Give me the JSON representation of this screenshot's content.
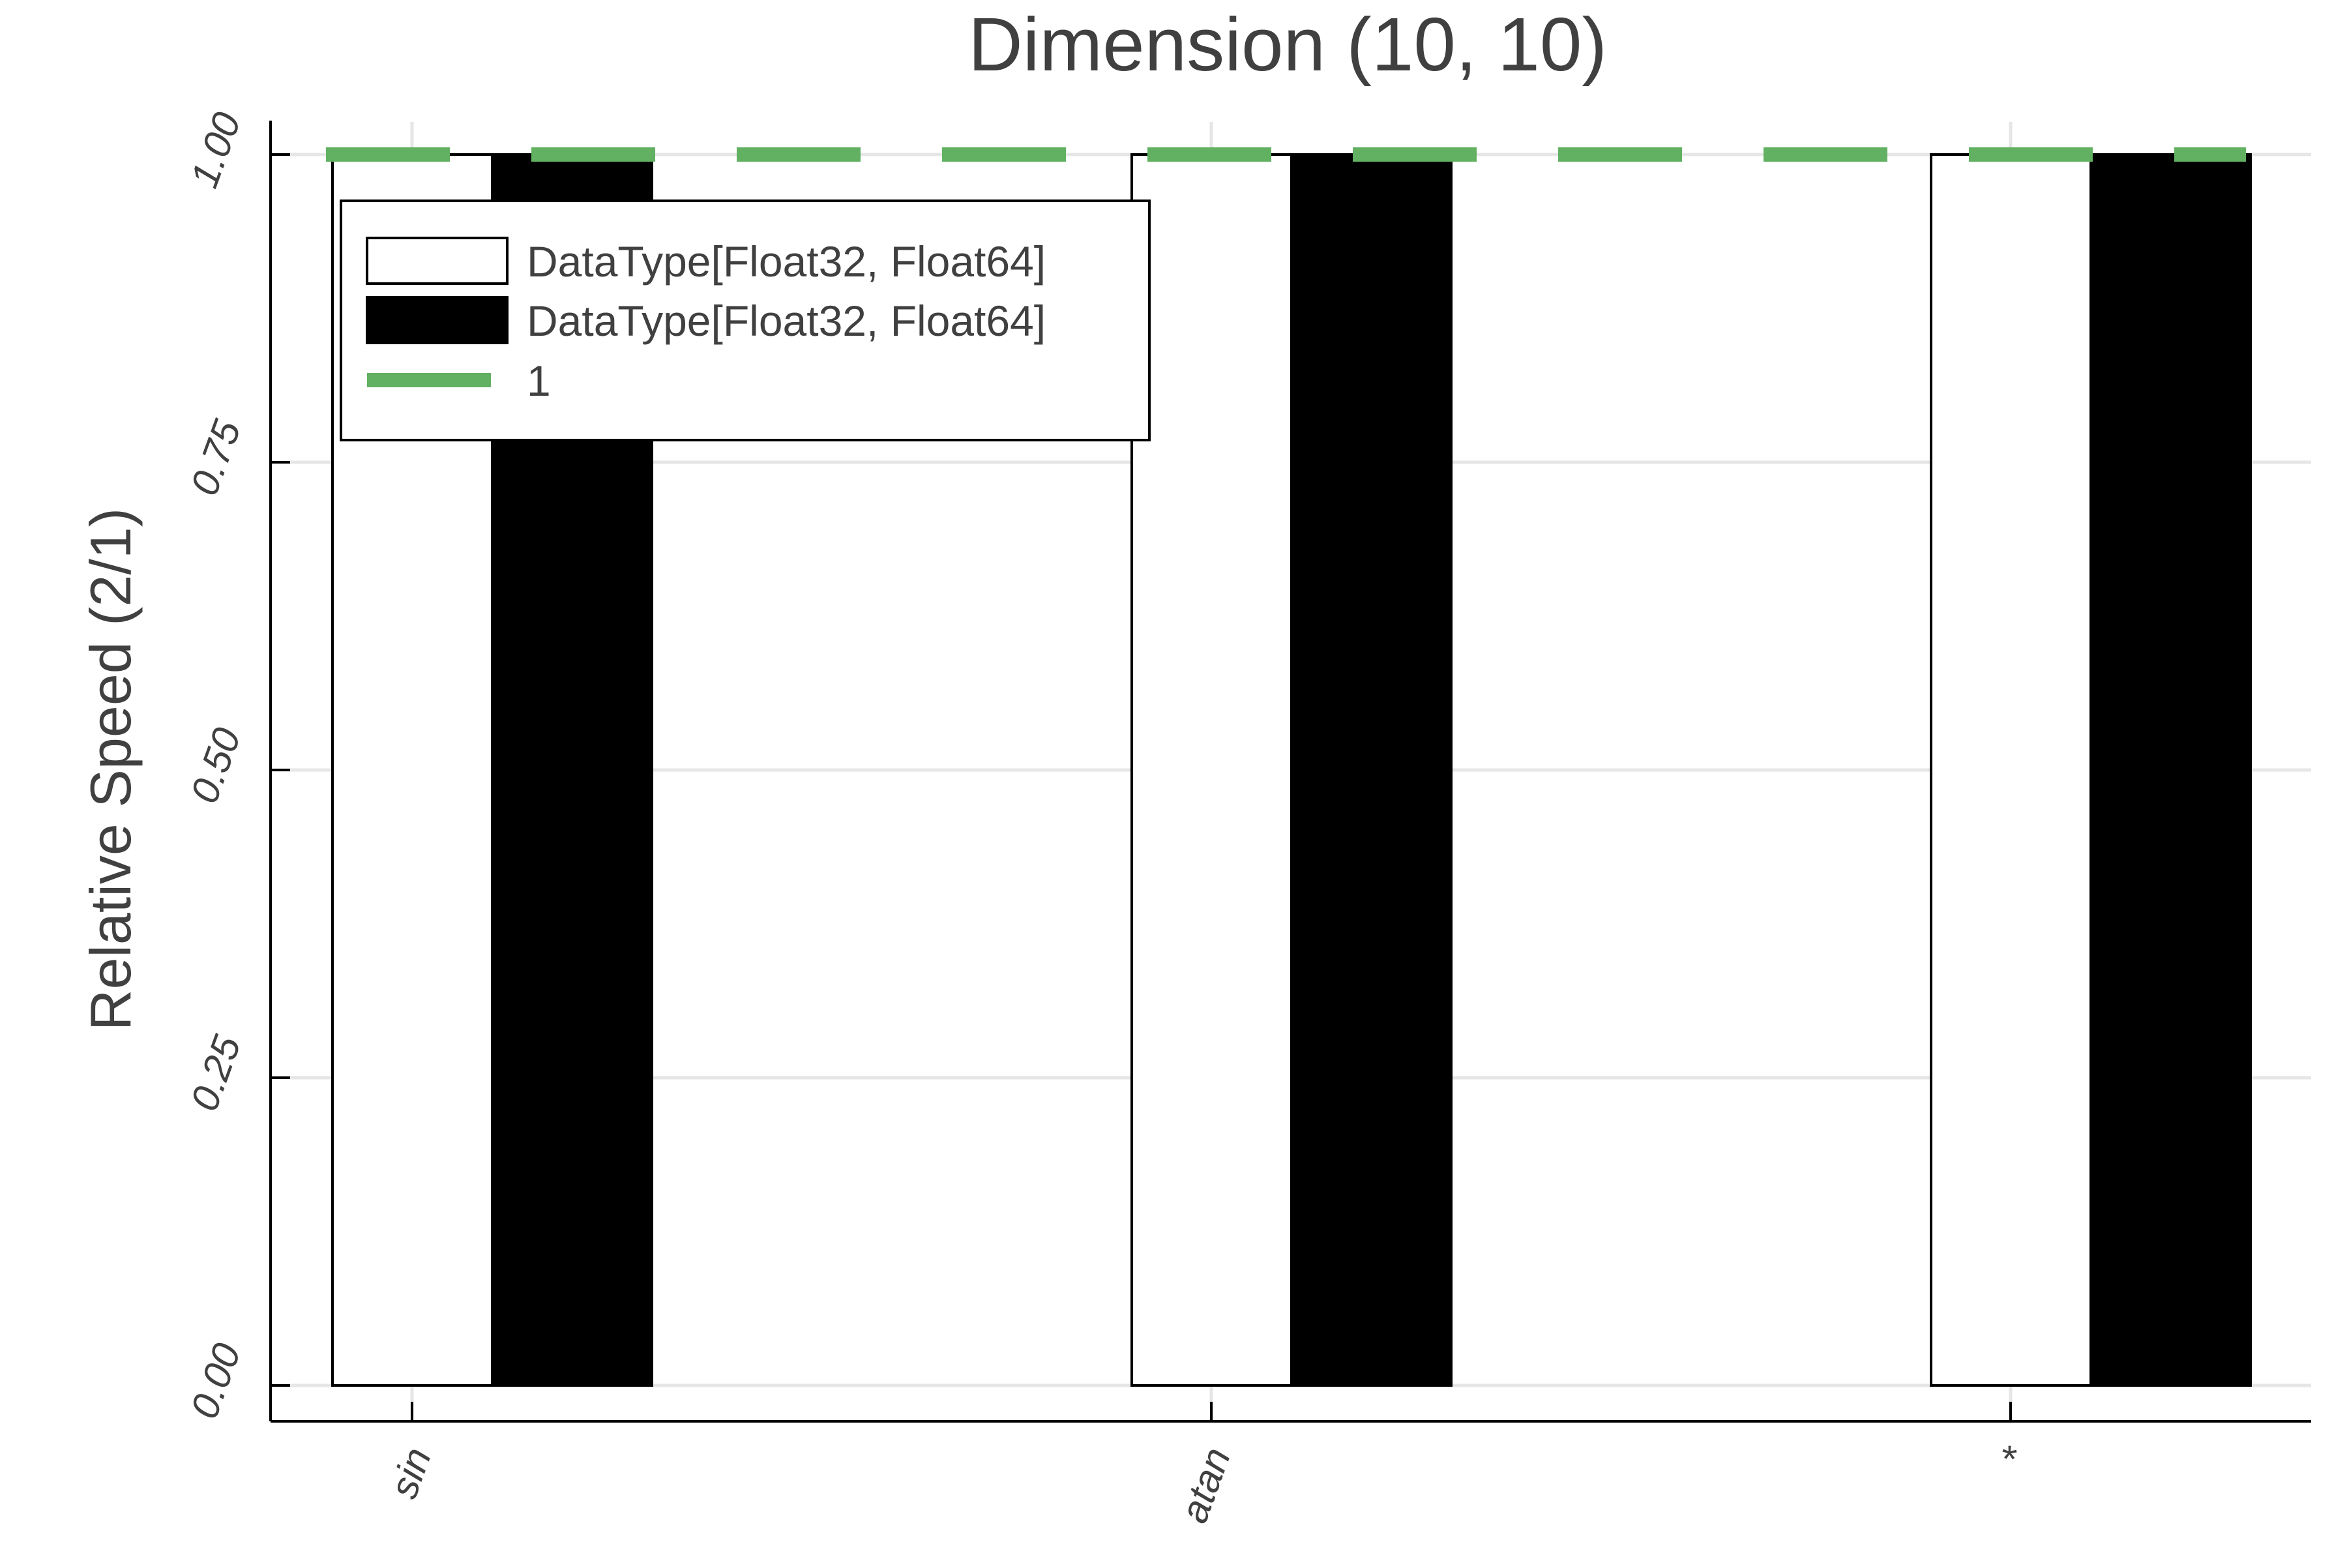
{
  "chart_data": {
    "type": "bar",
    "title": "Dimension (10, 10)",
    "xlabel": "",
    "ylabel": "Relative Speed (2/1)",
    "categories": [
      "sin",
      "atan",
      "*"
    ],
    "series": [
      {
        "name": "DataType[Float32, Float64]",
        "values": [
          1.0,
          1.0,
          1.0
        ],
        "fill": "#ffffff",
        "stroke": "#000000"
      },
      {
        "name": "DataType[Float32, Float64]",
        "values": [
          1.0,
          1.0,
          1.0
        ],
        "fill": "#000000",
        "stroke": "#000000"
      }
    ],
    "reference_line": {
      "name": "1",
      "y": 1.0,
      "color": "#62b162",
      "style": "dashed"
    },
    "ylim": [
      0.0,
      1.0
    ],
    "yticks": [
      "0.00",
      "0.25",
      "0.50",
      "0.75",
      "1.00"
    ],
    "grid": true,
    "legend_position": "top-left"
  }
}
